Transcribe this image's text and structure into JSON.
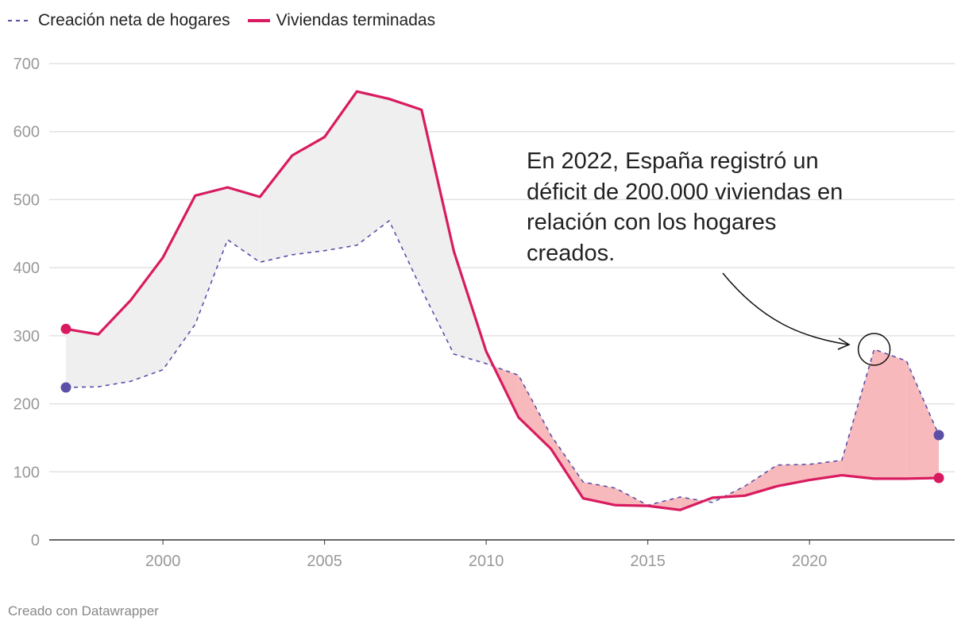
{
  "chart_data": {
    "type": "line",
    "title": "",
    "xlabel": "",
    "ylabel": "",
    "x": [
      1997,
      1998,
      1999,
      2000,
      2001,
      2002,
      2003,
      2004,
      2005,
      2006,
      2007,
      2008,
      2009,
      2010,
      2011,
      2012,
      2013,
      2014,
      2015,
      2016,
      2017,
      2018,
      2019,
      2020,
      2021,
      2022,
      2023,
      2024
    ],
    "series": [
      {
        "name": "Creación neta de hogares",
        "color": "#5b4fa8",
        "style": "dashed",
        "values": [
          224,
          225,
          233,
          250,
          317,
          441,
          408,
          419,
          425,
          433,
          469,
          368,
          273,
          259,
          242,
          154,
          85,
          76,
          51,
          63,
          55,
          79,
          110,
          111,
          117,
          280,
          263,
          154
        ]
      },
      {
        "name": "Viviendas terminadas",
        "color": "#d81b60",
        "style": "solid",
        "values": [
          310,
          302,
          352,
          415,
          506,
          518,
          504,
          565,
          592,
          659,
          648,
          632,
          424,
          277,
          180,
          134,
          61,
          51,
          50,
          44,
          62,
          65,
          79,
          88,
          95,
          90,
          90,
          91
        ]
      }
    ],
    "fill_colors": {
      "surplus": "#efefef",
      "deficit": "#f7b9bb"
    },
    "ylim": [
      0,
      700
    ],
    "yticks": [
      0,
      100,
      200,
      300,
      400,
      500,
      600,
      700
    ],
    "xticks": [
      2000,
      2005,
      2010,
      2015,
      2020
    ],
    "grid": true,
    "legend": "top-left",
    "annotation": {
      "text": "En 2022, España registró un déficit de 200.000 viviendas en relación con los hogares creados.",
      "x": 2022
    }
  },
  "credit": "Creado con Datawrapper"
}
